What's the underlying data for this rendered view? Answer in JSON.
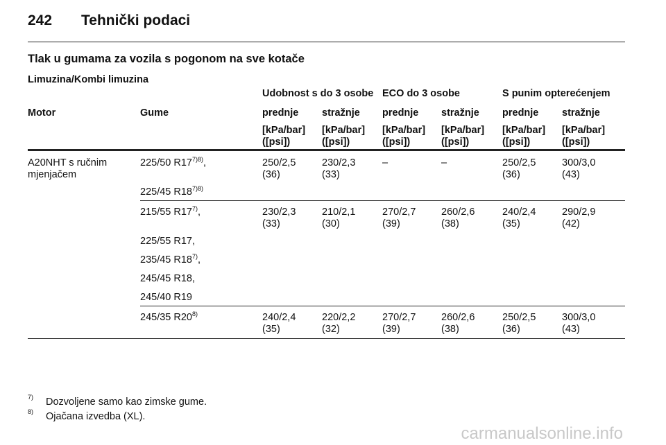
{
  "header": {
    "page_number": "242",
    "title": "Tehnički podaci"
  },
  "section_title": "Tlak u gumama za vozila s pogonom na sve kotače",
  "subsection_title": "Limuzina/Kombi limuzina",
  "table": {
    "group_headers": [
      "Udobnost s do 3 osobe",
      "ECO do 3 osobe",
      "S punim opterećenjem"
    ],
    "column_headers": [
      "Motor",
      "Gume",
      "prednje",
      "stražnje",
      "prednje",
      "stražnje",
      "prednje",
      "stražnje"
    ],
    "units": [
      "[kPa/bar]\n([psi])",
      "[kPa/bar]\n([psi])",
      "[kPa/bar]\n([psi])",
      "[kPa/bar]\n([psi])",
      "[kPa/bar]\n([psi])",
      "[kPa/bar]\n([psi])"
    ],
    "rows": [
      {
        "motor": "A20NHT s ručnim\nmjenjačem",
        "tyres": [
          {
            "size": "225/50 R17",
            "notes": "7)8)",
            "after": ","
          },
          {
            "size": "225/45 R18",
            "notes": "7)8)"
          }
        ],
        "values": [
          "250/2,5\n(36)",
          "230/2,3\n(33)",
          "–",
          "–",
          "250/2,5\n(36)",
          "300/3,0\n(43)"
        ]
      },
      {
        "tyres": [
          {
            "size": "215/55 R17",
            "notes": "7)",
            "after": ","
          },
          {
            "size": "225/55 R17,"
          },
          {
            "size": "235/45 R18",
            "notes": "7)",
            "after": ","
          },
          {
            "size": "245/45 R18,"
          },
          {
            "size": "245/40 R19"
          }
        ],
        "values": [
          "230/2,3\n(33)",
          "210/2,1\n(30)",
          "270/2,7\n(39)",
          "260/2,6\n(38)",
          "240/2,4\n(35)",
          "290/2,9\n(42)"
        ]
      },
      {
        "tyres": [
          {
            "size": "245/35 R20",
            "notes": "8)"
          }
        ],
        "values": [
          "240/2,4\n(35)",
          "220/2,2\n(32)",
          "270/2,7\n(39)",
          "260/2,6\n(38)",
          "250/2,5\n(36)",
          "300/3,0\n(43)"
        ]
      }
    ]
  },
  "footnotes": [
    {
      "mark": "7)",
      "text": "Dozvoljene samo kao zimske gume."
    },
    {
      "mark": "8)",
      "text": "Ojačana izvedba (XL)."
    }
  ],
  "watermark": "carmanualsonline.info"
}
